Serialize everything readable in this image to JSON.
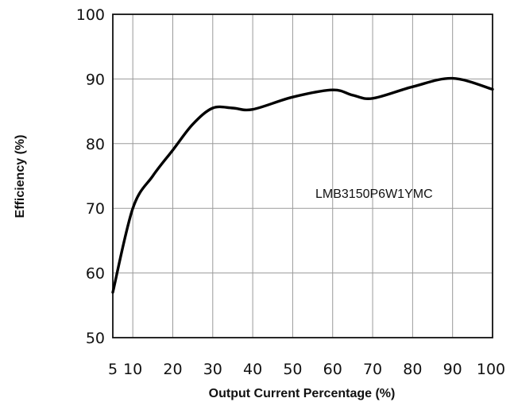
{
  "chart_data": {
    "type": "line",
    "title": "",
    "xlabel": "Output Current Percentage (%)",
    "ylabel": "Efficiency (%)",
    "annotation": "LMB3150P6W1YMC",
    "x_ticks": [
      "5",
      "10",
      "20",
      "30",
      "40",
      "50",
      "60",
      "70",
      "80",
      "90",
      "100"
    ],
    "y_ticks": [
      "50",
      "60",
      "70",
      "80",
      "90",
      "100"
    ],
    "xlim": [
      5,
      100
    ],
    "ylim": [
      50,
      100
    ],
    "grid": true,
    "series": [
      {
        "values": [
          {
            "x": 5,
            "y": 57
          },
          {
            "x": 10,
            "y": 70
          },
          {
            "x": 15,
            "y": 75
          },
          {
            "x": 20,
            "y": 79
          },
          {
            "x": 25,
            "y": 83
          },
          {
            "x": 30,
            "y": 85.5
          },
          {
            "x": 35,
            "y": 85.5
          },
          {
            "x": 40,
            "y": 85.3
          },
          {
            "x": 50,
            "y": 87.2
          },
          {
            "x": 60,
            "y": 88.3
          },
          {
            "x": 65,
            "y": 87.5
          },
          {
            "x": 70,
            "y": 87
          },
          {
            "x": 80,
            "y": 88.8
          },
          {
            "x": 90,
            "y": 90.1
          },
          {
            "x": 100,
            "y": 88.4
          }
        ]
      }
    ]
  }
}
